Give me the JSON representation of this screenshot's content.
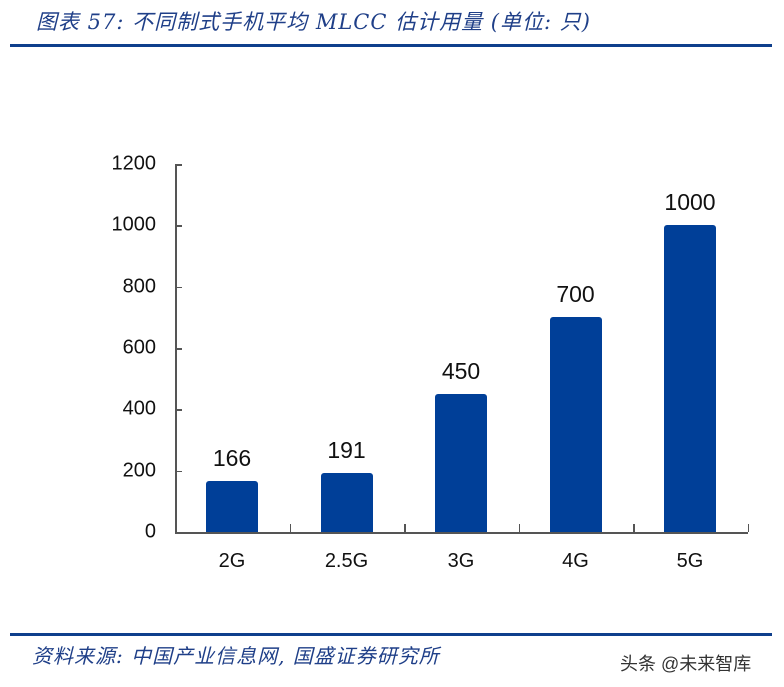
{
  "header": {
    "title": "图表 57:  不同制式手机平均 MLCC 估计用量 (单位: 只)"
  },
  "footer": {
    "source": "资料来源:  中国产业信息网,  国盛证券研究所",
    "watermark": "头条 @未来智库"
  },
  "colors": {
    "bar": "#003F98",
    "title_text": "#1F3F88",
    "rule": "#0F3F8C"
  },
  "chart_data": {
    "type": "bar",
    "title": "不同制式手机平均 MLCC 估计用量 (单位: 只)",
    "xlabel": "",
    "ylabel": "",
    "categories": [
      "2G",
      "2.5G",
      "3G",
      "4G",
      "5G"
    ],
    "values": [
      166,
      191,
      450,
      700,
      1000
    ],
    "data_labels": [
      "166",
      "191",
      "450",
      "700",
      "1000"
    ],
    "ylim": [
      0,
      1200
    ],
    "yticks": [
      0,
      200,
      400,
      600,
      800,
      1000,
      1200
    ],
    "ytick_labels": [
      "0",
      "200",
      "400",
      "600",
      "800",
      "1000",
      "1200"
    ],
    "grid": false,
    "legend": null
  }
}
